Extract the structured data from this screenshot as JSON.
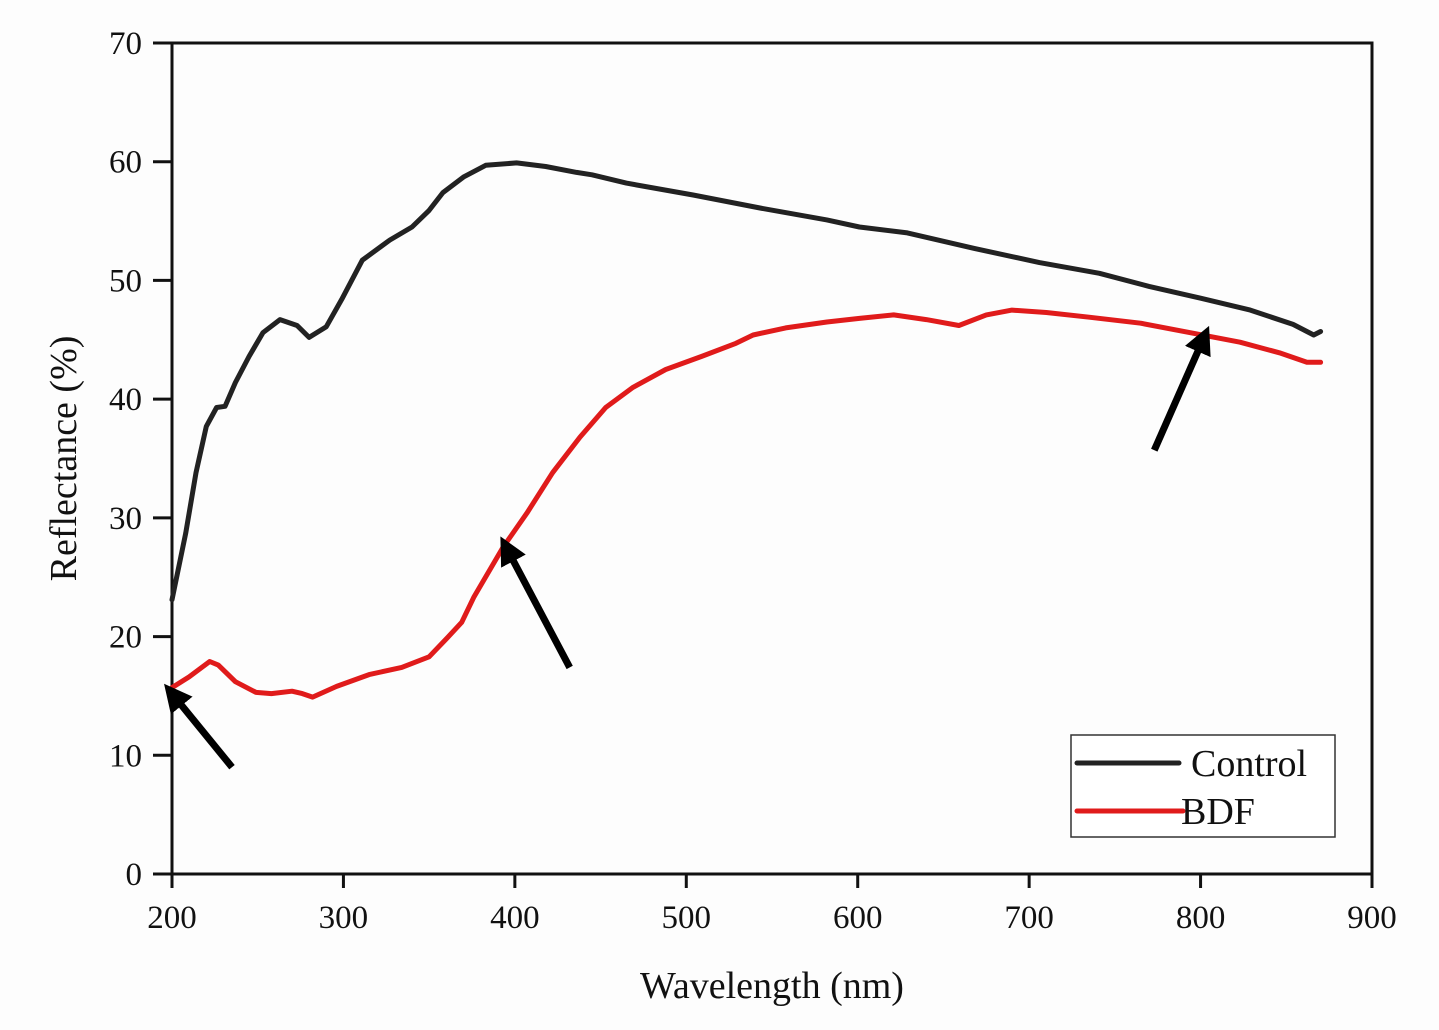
{
  "chart_data": {
    "type": "line",
    "title": "",
    "xlabel": "Wavelength (nm)",
    "ylabel": "Reflectance (%)",
    "xlim": [
      200,
      900
    ],
    "ylim": [
      0,
      70
    ],
    "xticks": [
      200,
      300,
      400,
      500,
      600,
      700,
      800,
      900
    ],
    "yticks": [
      0,
      10,
      20,
      30,
      40,
      50,
      60,
      70
    ],
    "xtick_labels": [
      "200",
      "300",
      "400",
      "500",
      "600",
      "700",
      "800",
      "900"
    ],
    "ytick_labels": [
      "0",
      "10",
      "20",
      "30",
      "40",
      "50",
      "60",
      "70"
    ],
    "grid": false,
    "legend": {
      "placement": "bottom-right",
      "entries": [
        "Control",
        "BDF"
      ]
    },
    "series": [
      {
        "name": "Control",
        "color": "#222222",
        "x": [
          200,
          208,
          214,
          220,
          226,
          231,
          237,
          245,
          253,
          263,
          273,
          280,
          290,
          299,
          311,
          327,
          340,
          350,
          358,
          370,
          383,
          401,
          418,
          436,
          445,
          465,
          504,
          543,
          582,
          601,
          629,
          668,
          706,
          741,
          770,
          800,
          829,
          854,
          866,
          870
        ],
        "y": [
          23.1,
          28.7,
          33.8,
          37.7,
          39.3,
          39.4,
          41.4,
          43.6,
          45.6,
          46.7,
          46.2,
          45.2,
          46.1,
          48.4,
          51.7,
          53.4,
          54.5,
          55.9,
          57.4,
          58.7,
          59.7,
          59.9,
          59.6,
          59.1,
          58.9,
          58.2,
          57.2,
          56.1,
          55.1,
          54.5,
          54.0,
          52.7,
          51.5,
          50.6,
          49.5,
          48.5,
          47.5,
          46.3,
          45.4,
          45.7
        ]
      },
      {
        "name": "BDF",
        "color": "#e01b1b",
        "x": [
          200,
          210,
          222,
          227,
          237,
          249,
          258,
          270,
          276,
          282,
          296,
          315,
          334,
          350,
          360,
          369,
          376,
          393,
          407,
          422,
          438,
          453,
          469,
          488,
          509,
          529,
          539,
          558,
          582,
          601,
          621,
          640,
          659,
          675,
          690,
          710,
          735,
          765,
          794,
          823,
          846,
          862,
          870
        ],
        "y": [
          15.7,
          16.6,
          17.9,
          17.6,
          16.2,
          15.3,
          15.2,
          15.4,
          15.2,
          14.9,
          15.8,
          16.8,
          17.4,
          18.3,
          19.8,
          21.2,
          23.3,
          27.5,
          30.4,
          33.8,
          36.8,
          39.3,
          41.0,
          42.5,
          43.6,
          44.7,
          45.4,
          46.0,
          46.5,
          46.8,
          47.1,
          46.7,
          46.2,
          47.1,
          47.5,
          47.3,
          46.9,
          46.4,
          45.6,
          44.8,
          43.9,
          43.1,
          43.1
        ]
      }
    ],
    "annotations": [
      {
        "type": "arrow",
        "points_to": [
          200,
          15.2
        ],
        "from": [
          235,
          9.0
        ]
      },
      {
        "type": "arrow",
        "points_to": [
          395,
          27.5
        ],
        "from": [
          432,
          17.4
        ]
      },
      {
        "type": "arrow",
        "points_to": [
          802,
          45.2
        ],
        "from": [
          773,
          35.7
        ]
      }
    ]
  }
}
